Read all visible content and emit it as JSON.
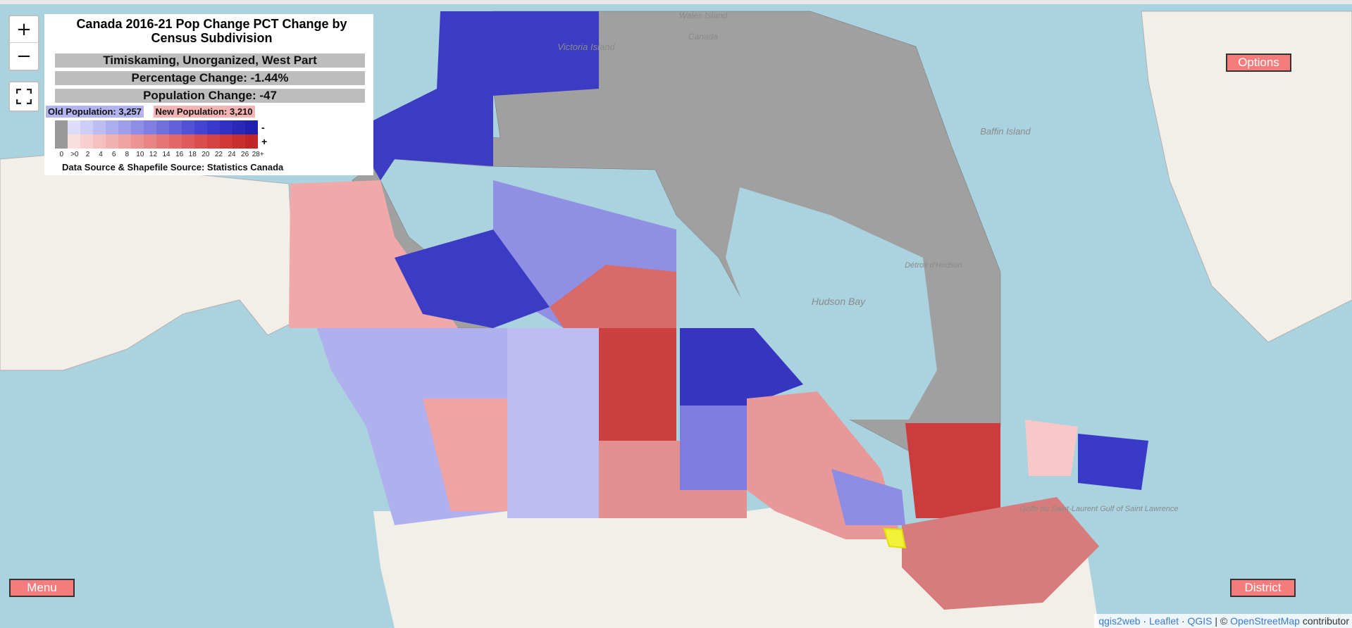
{
  "info": {
    "title": "Canada 2016-21 Pop Change PCT Change by Census Subdivision",
    "place": "Timiskaming, Unorganized, West Part",
    "percentage_change": "Percentage Change: -1.44%",
    "population_change": "Population Change: -47",
    "old_population": "Old Population: 3,257",
    "new_population": "New Population: 3,210",
    "source": "Data Source & Shapefile Source: Statistics Canada"
  },
  "legend": {
    "negative_sign": "-",
    "positive_sign": "+",
    "ticks": [
      "0",
      ">0",
      "2",
      "4",
      "6",
      "8",
      "10",
      "12",
      "14",
      "16",
      "18",
      "20",
      "22",
      "24",
      "26",
      "28+"
    ],
    "nodata_color": "#999999",
    "negative_colors": [
      "#ddddf8",
      "#cdcdf5",
      "#bdbdf2",
      "#aeaeee",
      "#9e9eea",
      "#8e8ee6",
      "#7f7fe2",
      "#7070de",
      "#6161da",
      "#5252d6",
      "#4444d2",
      "#3838cc",
      "#3030c4",
      "#2828bb",
      "#2020b2"
    ],
    "positive_colors": [
      "#fbdede",
      "#f8cfcf",
      "#f5c0c0",
      "#f2b2b2",
      "#efa3a3",
      "#ec9494",
      "#e98585",
      "#e67676",
      "#e36868",
      "#df5a5a",
      "#db4d4d",
      "#d64242",
      "#d03838",
      "#c92f2f",
      "#c22727"
    ]
  },
  "buttons": {
    "options": "Options",
    "menu": "Menu",
    "district": "District",
    "zoom_in": "+",
    "zoom_out": "−"
  },
  "map_labels": {
    "victoria_island": "Victoria Island",
    "baffin_island": "Baffin Island",
    "hudson_bay": "Hudson Bay",
    "detroit_hudson": "Détroit d'Hudson",
    "golfe_saint_laurent": "Golfe du Saint-Laurent Gulf of Saint Lawrence",
    "wales_island": "Wales Island",
    "canada_top": "Canada"
  },
  "attribution": {
    "qgis2web": "qgis2web",
    "leaflet": "Leaflet",
    "qgis": "QGIS",
    "osm": "OpenStreetMap",
    "contributors": "contributor"
  }
}
